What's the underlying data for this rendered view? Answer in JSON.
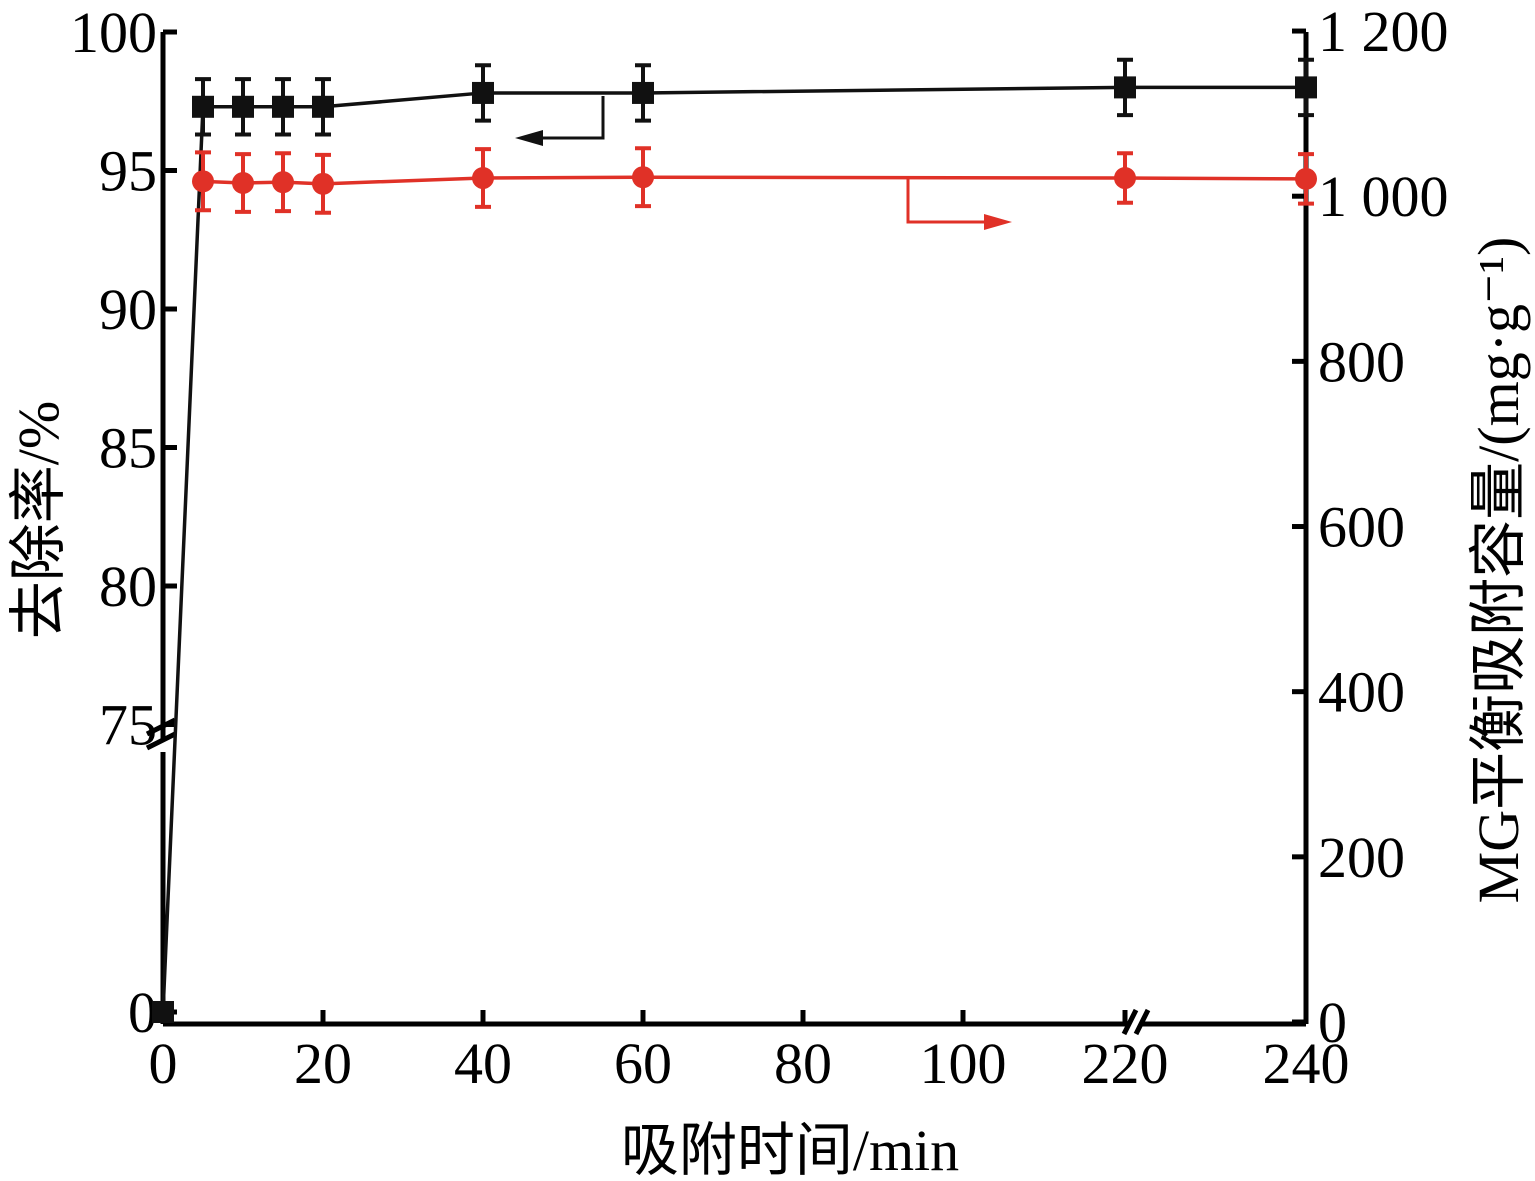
{
  "chart_data": {
    "type": "line",
    "title": "",
    "xlabel": "吸附时间/min",
    "ylabel_left": "去除率/%",
    "ylabel_right": "MG平衡吸附容量/(mg·g⁻¹)",
    "x_tick_labels": [
      "0",
      "20",
      "40",
      "60",
      "80",
      "100",
      "220",
      "240"
    ],
    "x_tick_values": [
      0,
      20,
      40,
      60,
      80,
      100,
      220,
      240
    ],
    "x_axis_break": "between 100 and 220",
    "y_left_tick_labels": [
      "0",
      "75",
      "80",
      "85",
      "90",
      "95",
      "100"
    ],
    "y_left_tick_values": [
      0,
      75,
      80,
      85,
      90,
      95,
      100
    ],
    "y_left_axis_break": "between 0 and 75",
    "y_right_tick_labels": [
      "0",
      "200",
      "400",
      "600",
      "800",
      "1 000",
      "1 200"
    ],
    "y_right_tick_values": [
      0,
      200,
      400,
      600,
      800,
      1000,
      1200
    ],
    "ylim_right": [
      0,
      1200
    ],
    "grid": false,
    "series": [
      {
        "axis": "left",
        "marker": "square",
        "color": "#111111",
        "points": [
          {
            "x": 0,
            "y": 0,
            "err": 0
          },
          {
            "x": 5,
            "y": 97.3,
            "err": 1.0
          },
          {
            "x": 10,
            "y": 97.3,
            "err": 1.0
          },
          {
            "x": 15,
            "y": 97.3,
            "err": 1.0
          },
          {
            "x": 20,
            "y": 97.3,
            "err": 1.0
          },
          {
            "x": 40,
            "y": 97.8,
            "err": 1.0
          },
          {
            "x": 60,
            "y": 97.8,
            "err": 1.0
          },
          {
            "x": 220,
            "y": 98.0,
            "err": 1.0
          },
          {
            "x": 240,
            "y": 98.0,
            "err": 1.0
          }
        ]
      },
      {
        "axis": "right",
        "marker": "circle",
        "color": "#e03127",
        "points": [
          {
            "x": 5,
            "y": 1018,
            "err": 35
          },
          {
            "x": 10,
            "y": 1016,
            "err": 35
          },
          {
            "x": 15,
            "y": 1017,
            "err": 35
          },
          {
            "x": 20,
            "y": 1015,
            "err": 35
          },
          {
            "x": 40,
            "y": 1022,
            "err": 35
          },
          {
            "x": 60,
            "y": 1023,
            "err": 35
          },
          {
            "x": 220,
            "y": 1022,
            "err": 30
          },
          {
            "x": 240,
            "y": 1021,
            "err": 30
          }
        ]
      }
    ]
  }
}
